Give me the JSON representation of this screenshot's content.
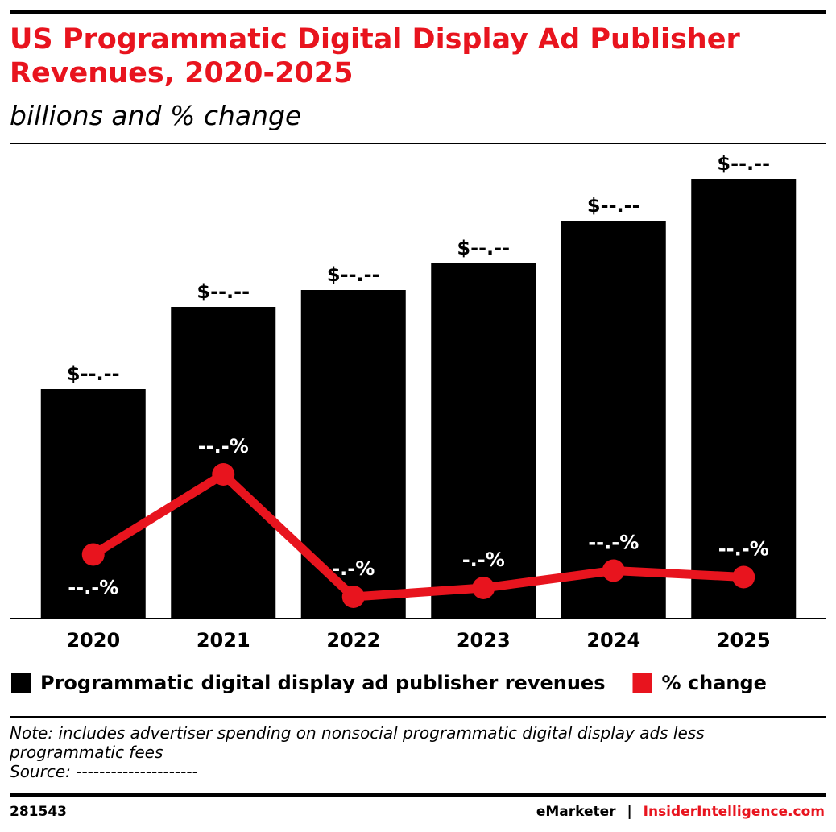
{
  "chart_data": {
    "type": "bar_line",
    "title": "US Programmatic Digital Display Ad Publisher Revenues, 2020-2025",
    "subtitle": "billions and % change",
    "categories": [
      "2020",
      "2021",
      "2022",
      "2023",
      "2024",
      "2025"
    ],
    "ylim": [
      0,
      60
    ],
    "y2lim": [
      0,
      120
    ],
    "series": [
      {
        "name": "Programmatic digital display ad publisher revenues",
        "type": "bar",
        "color": "#000000",
        "values": [
          28.5,
          38.7,
          40.8,
          44.1,
          49.4,
          54.6
        ],
        "value_labels": [
          "$--.--",
          "$--.--",
          "$--.--",
          "$--.--",
          "$--.--",
          "$--.--"
        ]
      },
      {
        "name": "% change",
        "type": "line",
        "axis": "y2",
        "color": "#e8141e",
        "values": [
          15.9,
          35.8,
          5.4,
          7.6,
          11.9,
          10.3
        ],
        "value_labels": [
          "--.-%",
          "--.-%",
          "-.-%",
          "-.-%",
          "--.-%",
          "--.-%"
        ]
      }
    ],
    "note": "Note: includes advertiser spending on nonsocial programmatic digital display ads less programmatic fees",
    "source": "Source: ---------------------"
  },
  "footer": {
    "id": "281543",
    "brand": "eMarketer",
    "separator": "|",
    "site": "InsiderIntelligence.com"
  }
}
